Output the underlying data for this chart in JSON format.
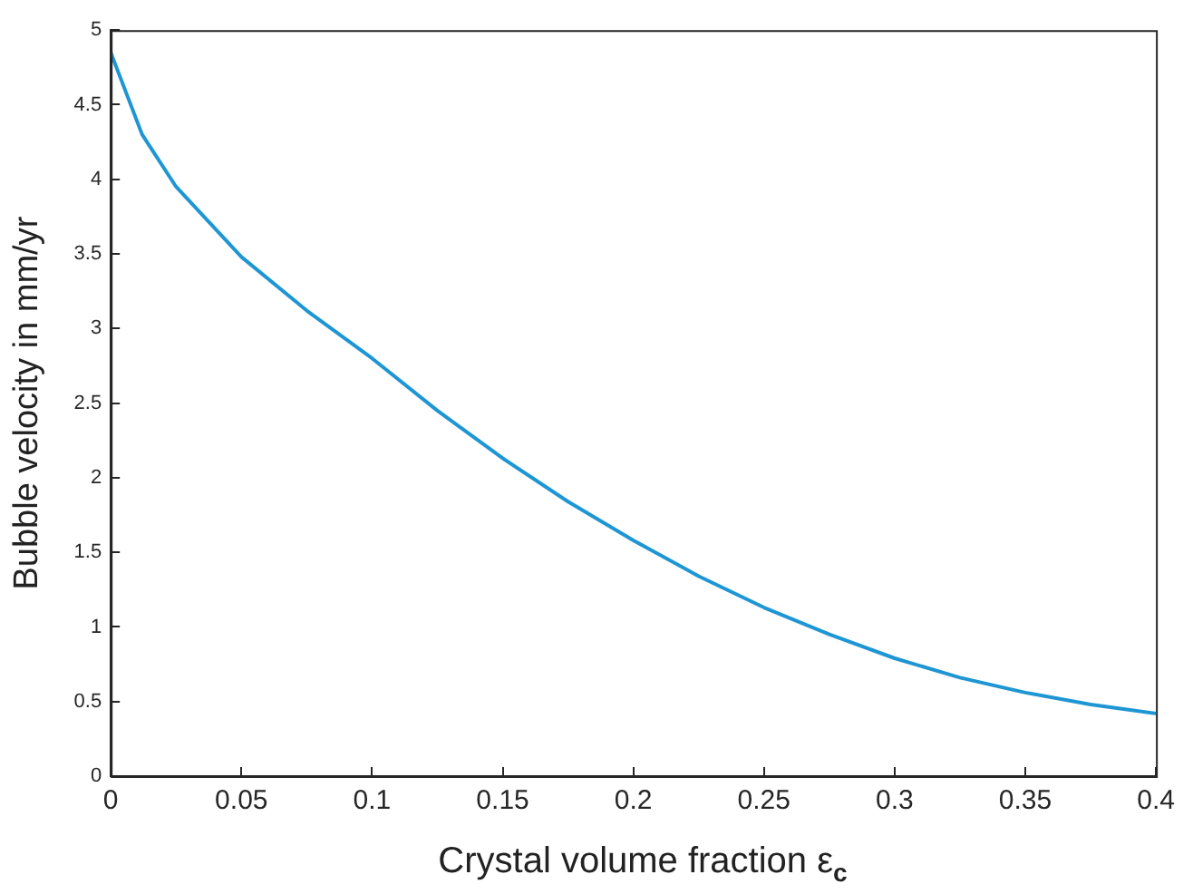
{
  "chart_data": {
    "type": "line",
    "xlabel": "Crystal volume fraction ε$_{c}$",
    "ylabel": "Bubble velocity in mm/yr",
    "x": [
      0,
      0.012,
      0.025,
      0.05,
      0.075,
      0.1,
      0.125,
      0.15,
      0.175,
      0.2,
      0.225,
      0.25,
      0.275,
      0.3,
      0.325,
      0.35,
      0.375,
      0.4
    ],
    "series": [
      {
        "color": "#1e96d4",
        "values": [
          4.85,
          4.3,
          3.95,
          3.48,
          3.12,
          2.8,
          2.45,
          2.13,
          1.84,
          1.58,
          1.34,
          1.13,
          0.95,
          0.79,
          0.66,
          0.56,
          0.48,
          0.42
        ]
      }
    ],
    "xlim": [
      0,
      0.4
    ],
    "ylim": [
      0,
      5
    ],
    "xticks": [
      0,
      0.05,
      0.1,
      0.15,
      0.2,
      0.25,
      0.3,
      0.35,
      0.4
    ],
    "yticks": [
      0,
      0.5,
      1,
      1.5,
      2,
      2.5,
      3,
      3.5,
      4,
      4.5,
      5
    ],
    "grid": false,
    "legend": false,
    "marker": "none",
    "line_style": "solid"
  }
}
